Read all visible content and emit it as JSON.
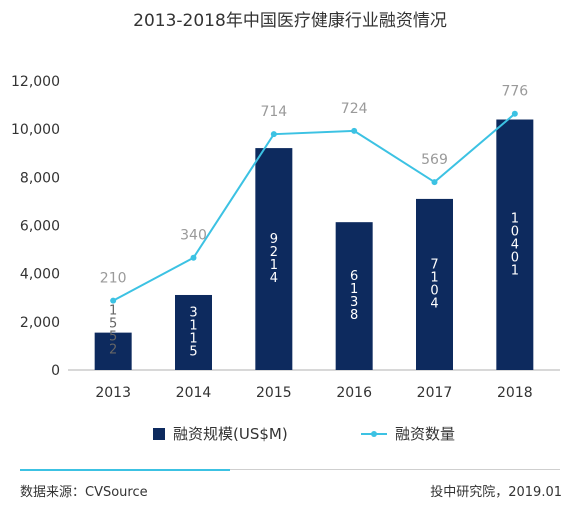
{
  "chart_data": {
    "type": "bar",
    "title": "2013-2018年中国医疗健康行业融资情况",
    "categories": [
      "2013",
      "2014",
      "2015",
      "2016",
      "2017",
      "2018"
    ],
    "y_ticks": [
      "0",
      "2,000",
      "4,000",
      "6,000",
      "8,000",
      "10,000",
      "12,000"
    ],
    "ylim": [
      0,
      12000
    ],
    "xlabel": "",
    "ylabel": "",
    "grid": false,
    "legend_position": "bottom",
    "series": [
      {
        "name": "融资规模(US$M)",
        "type": "bar",
        "color": "#0d2a5e",
        "values": [
          1552,
          3115,
          9214,
          6138,
          7104,
          10401
        ],
        "labels": [
          "1552",
          "3115",
          "9214",
          "6138",
          "7104",
          "10401"
        ]
      },
      {
        "name": "融资数量",
        "type": "line",
        "color": "#3cc2e3",
        "values": [
          210,
          340,
          714,
          724,
          569,
          776
        ],
        "labels": [
          "210",
          "340",
          "714",
          "724",
          "569",
          "776"
        ]
      }
    ]
  },
  "footer": {
    "source": "数据来源：CVSource",
    "credit": "投中研究院，2019.01",
    "accent_color": "#3cc2e3"
  }
}
